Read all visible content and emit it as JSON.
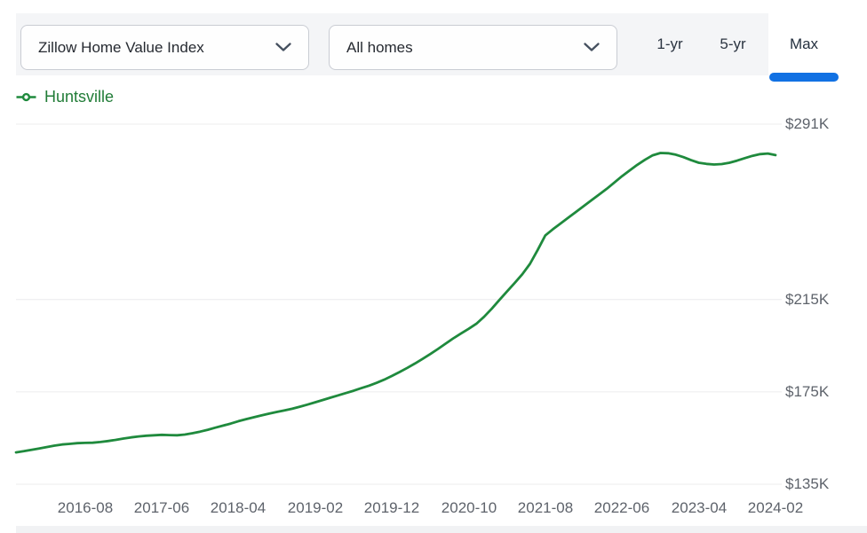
{
  "toolbar": {
    "metric_dropdown": {
      "value": "Zillow Home Value Index"
    },
    "segment_dropdown": {
      "value": "All homes"
    },
    "range_tabs": [
      {
        "label": "1-yr",
        "selected": false
      },
      {
        "label": "5-yr",
        "selected": false
      },
      {
        "label": "Max",
        "selected": true
      }
    ]
  },
  "legend": {
    "series_label": "Huntsville"
  },
  "icons": {
    "metric_dropdown_chevron": "chevron-down",
    "segment_dropdown_chevron": "chevron-down",
    "legend_marker": "line-with-open-circle"
  },
  "colors": {
    "series_green": "#1f8a3d",
    "legend_text_green": "#217c37",
    "selected_tab_underline_blue": "#1171e3",
    "gridline_gray": "#ececee",
    "axis_text_gray": "#5e636b",
    "toolbar_bg_gray": "#f4f5f7"
  },
  "chart_data": {
    "type": "line",
    "title": "",
    "legend_position": "top-left",
    "grid": "horizontal",
    "x_tick_labels": [
      "2016-08",
      "2017-06",
      "2018-04",
      "2019-02",
      "2019-12",
      "2020-10",
      "2021-08",
      "2022-06",
      "2023-04",
      "2024-02"
    ],
    "x_first_tick_series_index": 9,
    "x_tick_step_months": 10,
    "y_tick_labels": [
      "$291K",
      "$215K",
      "$175K",
      "$135K"
    ],
    "y_tick_values_usd_k": [
      291,
      215,
      175,
      135
    ],
    "ylim_usd_k": [
      135,
      291
    ],
    "series": [
      {
        "name": "Huntsville",
        "color": "#1f8a3d",
        "x_start": "2015-11",
        "x_frequency": "monthly",
        "x_end": "2024-02",
        "values_usd_k": [
          148.8,
          149.3,
          149.9,
          150.5,
          151.1,
          151.7,
          152.2,
          152.5,
          152.8,
          152.9,
          153.0,
          153.3,
          153.7,
          154.2,
          154.8,
          155.3,
          155.7,
          156.0,
          156.2,
          156.4,
          156.3,
          156.2,
          156.5,
          157.1,
          157.8,
          158.6,
          159.5,
          160.4,
          161.3,
          162.3,
          163.2,
          164.0,
          164.8,
          165.6,
          166.3,
          167.0,
          167.7,
          168.6,
          169.5,
          170.5,
          171.5,
          172.5,
          173.5,
          174.5,
          175.5,
          176.6,
          177.7,
          178.9,
          180.3,
          181.9,
          183.6,
          185.4,
          187.3,
          189.3,
          191.4,
          193.6,
          195.9,
          198.2,
          200.3,
          202.3,
          204.5,
          207.5,
          211.0,
          214.8,
          218.5,
          222.2,
          226.0,
          230.5,
          236.5,
          242.8,
          245.5,
          248.0,
          250.5,
          253.0,
          255.5,
          258.0,
          260.5,
          263.0,
          265.7,
          268.5,
          271.0,
          273.4,
          275.6,
          277.5,
          278.5,
          278.4,
          277.8,
          276.7,
          275.4,
          274.3,
          273.8,
          273.5,
          273.7,
          274.3,
          275.2,
          276.3,
          277.3,
          278.0,
          278.3,
          277.6
        ]
      }
    ]
  }
}
